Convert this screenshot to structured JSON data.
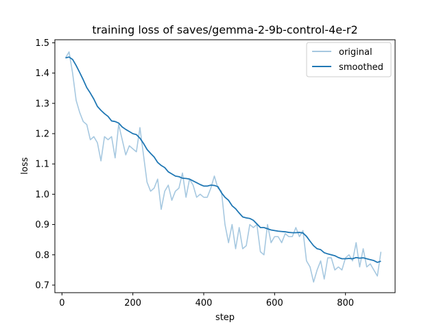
{
  "chart_data": {
    "type": "line",
    "title": "training loss of saves/gemma-2-9b-control-4e-r2",
    "xlabel": "step",
    "ylabel": "loss",
    "xlim": [
      -20,
      940
    ],
    "ylim": [
      0.675,
      1.51
    ],
    "x_ticks": [
      0,
      200,
      400,
      600,
      800
    ],
    "x_tick_labels": [
      "0",
      "200",
      "400",
      "600",
      "800"
    ],
    "y_ticks": [
      0.7,
      0.8,
      0.9,
      1.0,
      1.1,
      1.2,
      1.3,
      1.4,
      1.5
    ],
    "y_tick_labels": [
      "0.7",
      "0.8",
      "0.9",
      "1.0",
      "1.1",
      "1.2",
      "1.3",
      "1.4",
      "1.5"
    ],
    "legend_position": "top-right",
    "grid": false,
    "series": [
      {
        "name": "original",
        "color": "#a6c8e0",
        "x": [
          10,
          20,
          30,
          40,
          50,
          60,
          70,
          80,
          90,
          100,
          110,
          120,
          130,
          140,
          150,
          160,
          170,
          180,
          190,
          200,
          210,
          220,
          230,
          240,
          250,
          260,
          270,
          280,
          290,
          300,
          310,
          320,
          330,
          340,
          350,
          360,
          370,
          380,
          390,
          400,
          410,
          420,
          430,
          440,
          450,
          460,
          470,
          480,
          490,
          500,
          510,
          520,
          530,
          540,
          550,
          560,
          570,
          580,
          590,
          600,
          610,
          620,
          630,
          640,
          650,
          660,
          670,
          680,
          690,
          700,
          710,
          720,
          730,
          740,
          750,
          760,
          770,
          780,
          790,
          800,
          810,
          820,
          830,
          840,
          850,
          860,
          870,
          880,
          890,
          900
        ],
        "y": [
          1.45,
          1.47,
          1.4,
          1.31,
          1.27,
          1.24,
          1.23,
          1.18,
          1.19,
          1.17,
          1.11,
          1.19,
          1.18,
          1.19,
          1.12,
          1.23,
          1.18,
          1.13,
          1.16,
          1.15,
          1.14,
          1.22,
          1.13,
          1.04,
          1.01,
          1.02,
          1.05,
          0.95,
          1.01,
          1.03,
          0.98,
          1.01,
          1.02,
          1.07,
          0.99,
          1.05,
          1.03,
          0.99,
          1.0,
          0.99,
          0.99,
          1.02,
          1.06,
          1.02,
          1.01,
          0.9,
          0.84,
          0.9,
          0.82,
          0.89,
          0.82,
          0.83,
          0.9,
          0.89,
          0.9,
          0.81,
          0.8,
          0.9,
          0.84,
          0.86,
          0.86,
          0.84,
          0.87,
          0.86,
          0.86,
          0.89,
          0.86,
          0.88,
          0.78,
          0.76,
          0.71,
          0.75,
          0.78,
          0.72,
          0.79,
          0.79,
          0.75,
          0.76,
          0.75,
          0.79,
          0.8,
          0.78,
          0.84,
          0.76,
          0.82,
          0.76,
          0.77,
          0.75,
          0.73,
          0.81
        ]
      },
      {
        "name": "smoothed",
        "color": "#1f77b4",
        "x": [
          10,
          20,
          30,
          40,
          50,
          60,
          70,
          80,
          90,
          100,
          110,
          120,
          130,
          140,
          150,
          160,
          170,
          180,
          190,
          200,
          210,
          220,
          230,
          240,
          250,
          260,
          270,
          280,
          290,
          300,
          310,
          320,
          330,
          340,
          350,
          360,
          370,
          380,
          390,
          400,
          410,
          420,
          430,
          440,
          450,
          460,
          470,
          480,
          490,
          500,
          510,
          520,
          530,
          540,
          550,
          560,
          570,
          580,
          590,
          600,
          610,
          620,
          630,
          640,
          650,
          660,
          670,
          680,
          690,
          700,
          710,
          720,
          730,
          740,
          750,
          760,
          770,
          780,
          790,
          800,
          810,
          820,
          830,
          840,
          850,
          860,
          870,
          880,
          890,
          900
        ],
        "y": [
          1.45,
          1.453,
          1.445,
          1.425,
          1.402,
          1.378,
          1.352,
          1.334,
          1.314,
          1.29,
          1.277,
          1.266,
          1.257,
          1.242,
          1.24,
          1.235,
          1.222,
          1.214,
          1.207,
          1.2,
          1.197,
          1.185,
          1.168,
          1.148,
          1.135,
          1.123,
          1.105,
          1.095,
          1.088,
          1.074,
          1.067,
          1.06,
          1.058,
          1.053,
          1.052,
          1.05,
          1.044,
          1.038,
          1.032,
          1.027,
          1.027,
          1.03,
          1.029,
          1.025,
          1.005,
          0.99,
          0.98,
          0.962,
          0.952,
          0.938,
          0.925,
          0.922,
          0.92,
          0.914,
          0.902,
          0.89,
          0.89,
          0.886,
          0.882,
          0.88,
          0.878,
          0.877,
          0.876,
          0.874,
          0.873,
          0.873,
          0.874,
          0.872,
          0.861,
          0.845,
          0.83,
          0.82,
          0.817,
          0.807,
          0.803,
          0.8,
          0.797,
          0.791,
          0.787,
          0.787,
          0.788,
          0.787,
          0.791,
          0.789,
          0.79,
          0.787,
          0.784,
          0.781,
          0.775,
          0.779
        ]
      }
    ]
  }
}
